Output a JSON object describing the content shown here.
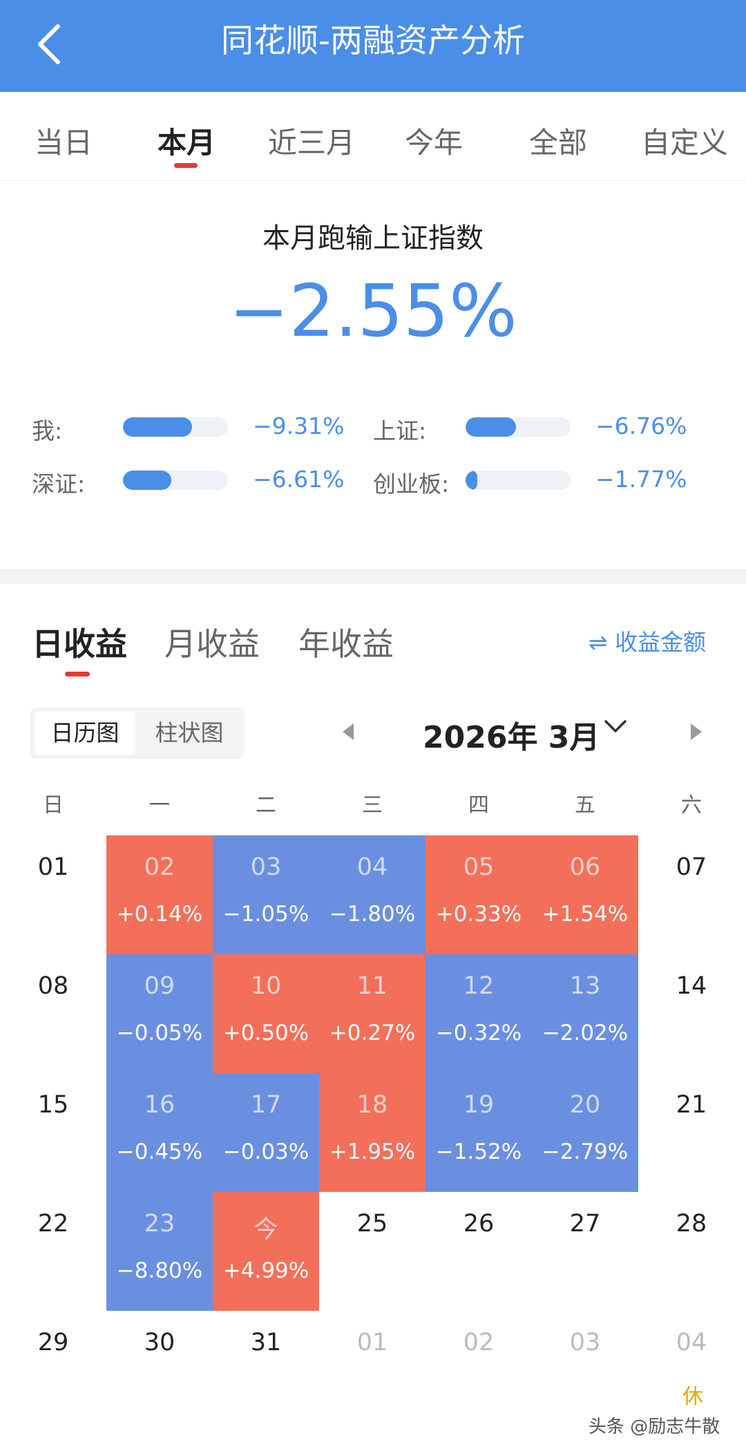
{
  "header": {
    "title": "同花顺-两融资产分析",
    "back_icon": "back-arrow-icon"
  },
  "tabs": [
    "当日",
    "本月",
    "近三月",
    "今年",
    "全部",
    "自定义"
  ],
  "active_tab": "本月",
  "summary": {
    "title": "本月跑输上证指数",
    "value": "−2.55%"
  },
  "comparisons": [
    {
      "label": "我:",
      "value": "−9.31%",
      "fill": 0.66
    },
    {
      "label": "上证:",
      "value": "−6.76%",
      "fill": 0.48
    },
    {
      "label": "深证:",
      "value": "−6.61%",
      "fill": 0.46
    },
    {
      "label": "创业板:",
      "value": "−1.77%",
      "fill": 0.11
    }
  ],
  "sub_tabs": [
    "日收益",
    "月收益",
    "年收益"
  ],
  "active_sub_tab": "日收益",
  "swap_label": "⇌ 收益金额",
  "view_toggle": [
    "日历图",
    "柱状图"
  ],
  "active_view": "日历图",
  "month_label": "2026年 3月",
  "weekdays": [
    "日",
    "一",
    "二",
    "三",
    "四",
    "五",
    "六"
  ],
  "colors": {
    "accent": "#4a8ee8",
    "gain": "#f36f5a",
    "loss": "#6b8fe0",
    "rest": "#e0a800"
  },
  "calendar": [
    [
      {
        "d": "01"
      },
      {
        "d": "02",
        "p": "+0.14%",
        "c": "red"
      },
      {
        "d": "03",
        "p": "−1.05%",
        "c": "blue"
      },
      {
        "d": "04",
        "p": "−1.80%",
        "c": "blue"
      },
      {
        "d": "05",
        "p": "+0.33%",
        "c": "red"
      },
      {
        "d": "06",
        "p": "+1.54%",
        "c": "red"
      },
      {
        "d": "07"
      }
    ],
    [
      {
        "d": "08"
      },
      {
        "d": "09",
        "p": "−0.05%",
        "c": "blue"
      },
      {
        "d": "10",
        "p": "+0.50%",
        "c": "red"
      },
      {
        "d": "11",
        "p": "+0.27%",
        "c": "red"
      },
      {
        "d": "12",
        "p": "−0.32%",
        "c": "blue"
      },
      {
        "d": "13",
        "p": "−2.02%",
        "c": "blue"
      },
      {
        "d": "14"
      }
    ],
    [
      {
        "d": "15"
      },
      {
        "d": "16",
        "p": "−0.45%",
        "c": "blue"
      },
      {
        "d": "17",
        "p": "−0.03%",
        "c": "blue"
      },
      {
        "d": "18",
        "p": "+1.95%",
        "c": "red"
      },
      {
        "d": "19",
        "p": "−1.52%",
        "c": "blue"
      },
      {
        "d": "20",
        "p": "−2.79%",
        "c": "blue"
      },
      {
        "d": "21"
      }
    ],
    [
      {
        "d": "22"
      },
      {
        "d": "23",
        "p": "−8.80%",
        "c": "blue"
      },
      {
        "d": "今",
        "p": "+4.99%",
        "c": "red"
      },
      {
        "d": "25"
      },
      {
        "d": "26"
      },
      {
        "d": "27"
      },
      {
        "d": "28"
      }
    ],
    [
      {
        "d": "29"
      },
      {
        "d": "30"
      },
      {
        "d": "31"
      },
      {
        "d": "01",
        "c": "dim"
      },
      {
        "d": "02",
        "c": "dim"
      },
      {
        "d": "03",
        "c": "dim"
      },
      {
        "d": "04",
        "c": "dim"
      }
    ]
  ],
  "rest_label": "休",
  "watermark": "头条 @励志牛散"
}
